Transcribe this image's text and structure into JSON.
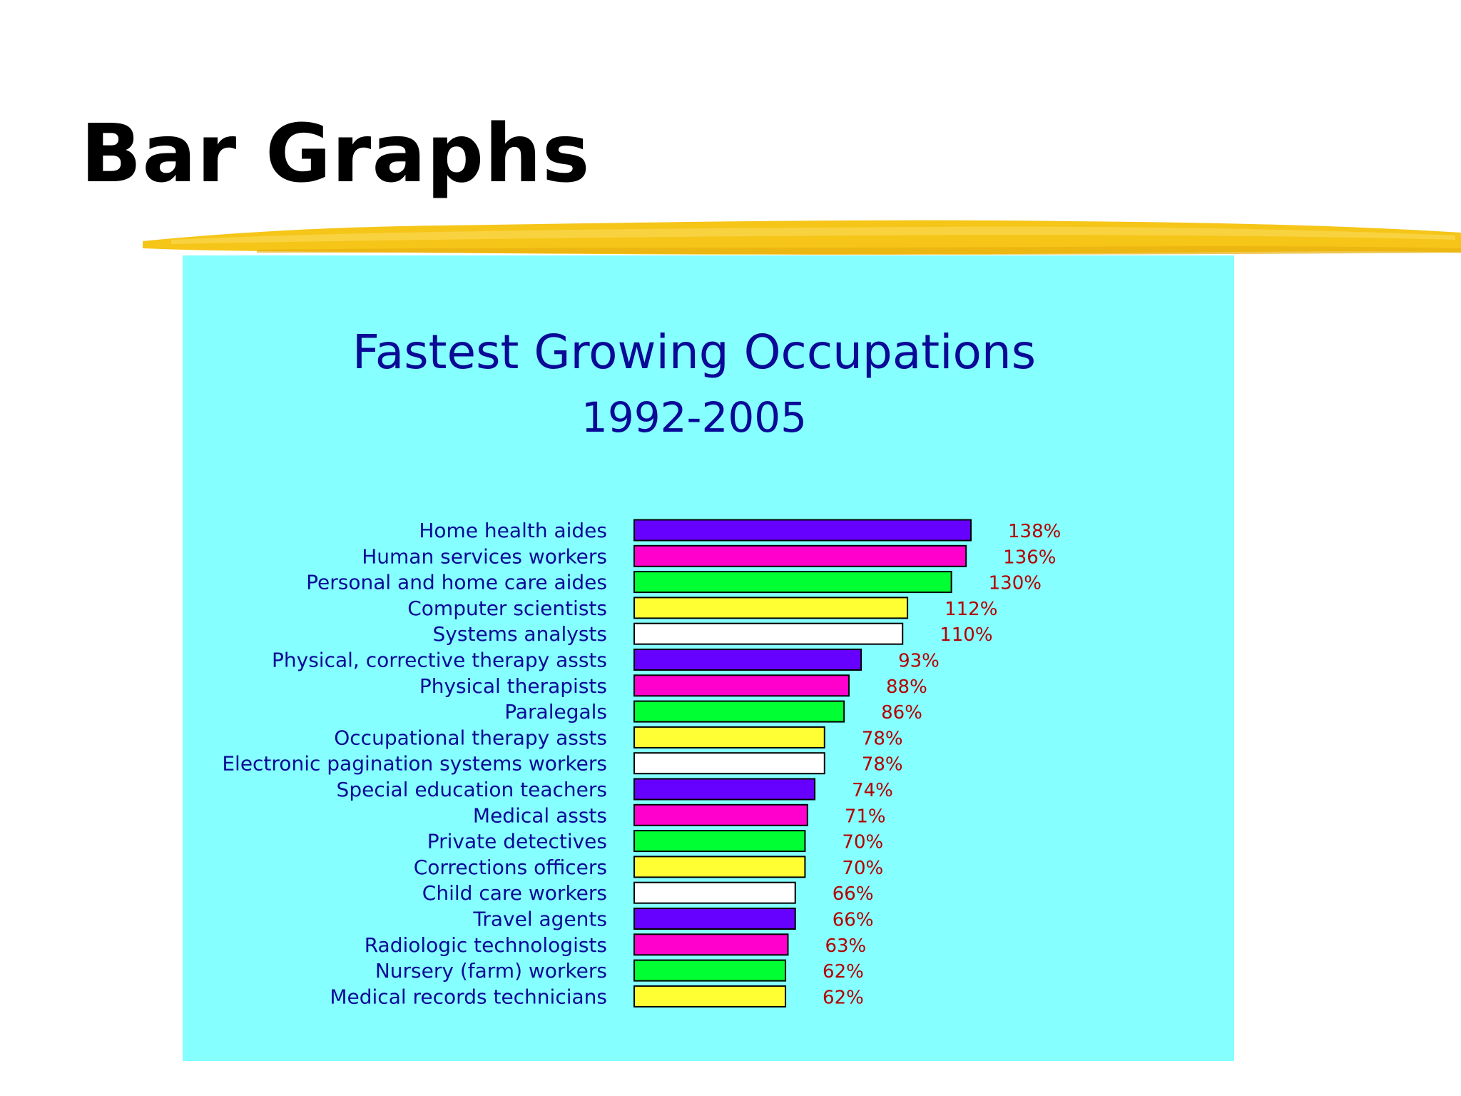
{
  "slide": {
    "title": "Bar Graphs"
  },
  "colors": {
    "panel_background": "#85FFFF",
    "title_text": "#0A0A96",
    "value_text": "#B40000",
    "brush_stroke": "#F5C518",
    "bar_outline": "#000000"
  },
  "chart_data": {
    "type": "bar",
    "orientation": "horizontal",
    "title": "Fastest Growing Occupations",
    "subtitle": "1992-2005",
    "categories": [
      "Home health aides",
      "Human services workers",
      "Personal and home care aides",
      "Computer scientists",
      "Systems analysts",
      "Physical, corrective therapy assts",
      "Physical therapists",
      "Paralegals",
      "Occupational therapy assts",
      "Electronic pagination systems workers",
      "Special education teachers",
      "Medical assts",
      "Private detectives",
      "Corrections officers",
      "Child care workers",
      "Travel agents",
      "Radiologic technologists",
      "Nursery (farm) workers",
      "Medical records technicians"
    ],
    "values": [
      138,
      136,
      130,
      112,
      110,
      93,
      88,
      86,
      78,
      78,
      74,
      71,
      70,
      70,
      66,
      66,
      63,
      62,
      62
    ],
    "value_labels": [
      "138%",
      "136%",
      "130%",
      "112%",
      "110%",
      "93%",
      "88%",
      "86%",
      "78%",
      "78%",
      "74%",
      "71%",
      "70%",
      "70%",
      "66%",
      "66%",
      "63%",
      "62%",
      "62%"
    ],
    "bar_colors": [
      "#6600FF",
      "#FF00CC",
      "#00FF33",
      "#FFFF33",
      "#FFFFFF"
    ],
    "unit": "%",
    "xlim": [
      0,
      138
    ],
    "grid": false,
    "legend": "none"
  }
}
